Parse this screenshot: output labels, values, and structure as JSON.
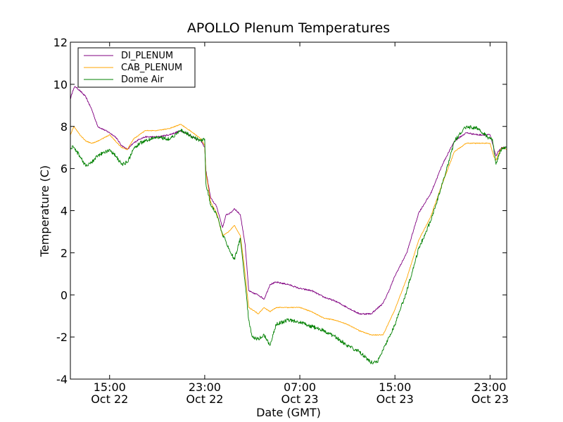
{
  "chart_data": {
    "type": "line",
    "title": "APOLLO Plenum Temperatures",
    "xlabel": "Date (GMT)",
    "ylabel": "Temperature (C)",
    "x_unit": "hours since Oct 22 15:00 GMT",
    "xlim": [
      -3.3,
      33.4
    ],
    "ylim": [
      -4,
      12
    ],
    "grid": false,
    "legend_position": "top-left",
    "x_ticks": [
      {
        "value": 0,
        "time": "15:00",
        "date": "Oct 22"
      },
      {
        "value": 8,
        "time": "23:00",
        "date": "Oct 22"
      },
      {
        "value": 16,
        "time": "07:00",
        "date": "Oct 23"
      },
      {
        "value": 24,
        "time": "15:00",
        "date": "Oct 23"
      },
      {
        "value": 32,
        "time": "23:00",
        "date": "Oct 23"
      }
    ],
    "y_ticks": [
      {
        "value": -4,
        "label": "-4"
      },
      {
        "value": -2,
        "label": "-2"
      },
      {
        "value": 0,
        "label": "0"
      },
      {
        "value": 2,
        "label": "2"
      },
      {
        "value": 4,
        "label": "4"
      },
      {
        "value": 6,
        "label": "6"
      },
      {
        "value": 8,
        "label": "8"
      },
      {
        "value": 10,
        "label": "10"
      },
      {
        "value": 12,
        "label": "12"
      }
    ],
    "series": [
      {
        "name": "DI_PLENUM",
        "color": "#800080",
        "x": [
          -3.3,
          -3.1,
          -2.9,
          -2.5,
          -2.0,
          -1.5,
          -1.0,
          0.0,
          0.5,
          1.0,
          1.5,
          2.0,
          2.5,
          3.0,
          4.0,
          5.0,
          6.0,
          7.0,
          7.7,
          8.0,
          8.1,
          8.5,
          9.0,
          9.5,
          9.8,
          10.2,
          10.5,
          11.0,
          11.4,
          11.7,
          12.0,
          12.5,
          13.0,
          13.5,
          14.0,
          15.0,
          16.0,
          17.0,
          18.0,
          19.0,
          20.0,
          21.0,
          22.0,
          23.0,
          23.5,
          24.0,
          25.0,
          26.0,
          27.0,
          28.0,
          29.0,
          30.0,
          31.0,
          32.0,
          32.3,
          32.5,
          32.8,
          33.0,
          33.4
        ],
        "values": [
          9.3,
          9.7,
          9.9,
          9.7,
          9.4,
          8.8,
          8.0,
          7.7,
          7.5,
          7.1,
          6.9,
          7.2,
          7.4,
          7.5,
          7.5,
          7.6,
          7.8,
          7.5,
          7.3,
          7.0,
          5.9,
          4.6,
          4.2,
          3.2,
          3.8,
          3.9,
          4.1,
          3.8,
          2.4,
          0.2,
          0.1,
          0.0,
          -0.2,
          0.5,
          0.6,
          0.5,
          0.3,
          0.2,
          -0.1,
          -0.3,
          -0.6,
          -0.9,
          -0.9,
          -0.4,
          0.2,
          0.9,
          2.0,
          3.9,
          4.8,
          6.2,
          7.3,
          7.7,
          7.6,
          7.6,
          7.0,
          6.6,
          6.9,
          7.0,
          7.0
        ]
      },
      {
        "name": "CAB_PLENUM",
        "color": "#ffa500",
        "x": [
          -3.3,
          -3.0,
          -2.5,
          -2.0,
          -1.5,
          -1.0,
          0.0,
          1.0,
          1.5,
          2.0,
          3.0,
          4.0,
          5.0,
          6.0,
          7.0,
          7.7,
          8.0,
          8.1,
          8.5,
          9.0,
          9.5,
          10.0,
          10.5,
          11.0,
          11.3,
          11.7,
          12.0,
          12.5,
          13.0,
          13.5,
          14.0,
          15.0,
          16.0,
          17.0,
          18.0,
          19.0,
          20.0,
          21.0,
          22.0,
          23.0,
          23.5,
          24.0,
          25.0,
          26.0,
          27.0,
          28.0,
          29.0,
          30.0,
          31.0,
          32.0,
          32.3,
          32.5,
          32.8,
          33.0,
          33.4
        ],
        "values": [
          7.6,
          8.0,
          7.6,
          7.3,
          7.2,
          7.3,
          7.6,
          7.0,
          6.9,
          7.4,
          7.8,
          7.8,
          7.9,
          8.1,
          7.7,
          7.4,
          7.1,
          5.8,
          4.4,
          3.9,
          2.8,
          3.0,
          3.3,
          2.8,
          1.5,
          -0.6,
          -0.7,
          -0.9,
          -0.6,
          -0.8,
          -0.6,
          -0.6,
          -0.6,
          -0.8,
          -1.1,
          -1.2,
          -1.4,
          -1.7,
          -1.9,
          -1.9,
          -1.3,
          -0.7,
          0.8,
          2.6,
          3.7,
          5.3,
          6.8,
          7.2,
          7.2,
          7.2,
          6.6,
          6.4,
          6.8,
          7.0,
          6.9
        ]
      },
      {
        "name": "Dome Air",
        "color": "#008000",
        "x": [
          -3.3,
          -3.0,
          -2.5,
          -2.0,
          -1.5,
          -1.0,
          0.0,
          0.5,
          1.0,
          1.5,
          2.0,
          2.5,
          3.0,
          4.0,
          5.0,
          6.0,
          7.0,
          7.7,
          8.0,
          8.1,
          8.5,
          9.0,
          9.5,
          10.0,
          10.5,
          11.0,
          11.3,
          11.7,
          12.0,
          12.5,
          13.0,
          13.5,
          14.0,
          15.0,
          16.0,
          17.0,
          18.0,
          19.0,
          20.0,
          21.0,
          22.0,
          22.5,
          23.0,
          23.5,
          24.0,
          25.0,
          26.0,
          27.0,
          28.0,
          29.0,
          30.0,
          31.0,
          32.0,
          32.2,
          32.5,
          32.8,
          33.0,
          33.4
        ],
        "values": [
          7.0,
          7.0,
          6.6,
          6.1,
          6.3,
          6.6,
          6.9,
          6.6,
          6.2,
          6.3,
          6.9,
          7.2,
          7.3,
          7.5,
          7.4,
          7.8,
          7.5,
          7.3,
          7.4,
          5.3,
          4.3,
          3.8,
          2.9,
          2.2,
          1.7,
          2.7,
          1.1,
          -1.2,
          -2.0,
          -2.1,
          -1.9,
          -2.4,
          -1.4,
          -1.2,
          -1.3,
          -1.5,
          -1.7,
          -2.0,
          -2.4,
          -2.7,
          -3.2,
          -3.2,
          -2.6,
          -2.0,
          -1.4,
          0.2,
          2.2,
          3.5,
          5.3,
          7.3,
          8.0,
          7.9,
          7.4,
          7.4,
          6.2,
          6.7,
          7.0,
          7.0
        ]
      }
    ]
  }
}
